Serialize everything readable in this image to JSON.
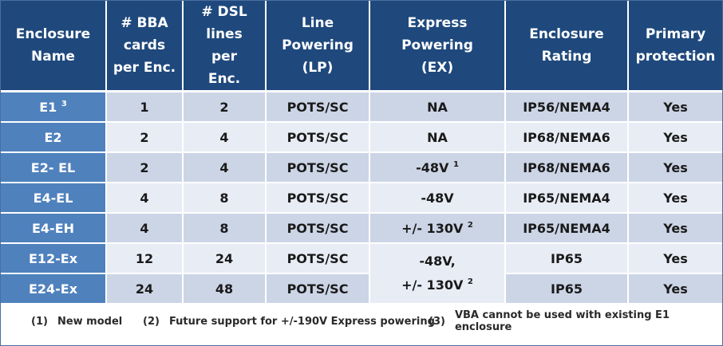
{
  "headers": [
    [
      "Enclosure",
      "Name"
    ],
    [
      "# BBA",
      "cards",
      "per Enc."
    ],
    [
      "# DSL lines",
      "per",
      "Enc."
    ],
    [
      "Line",
      "Powering",
      "(LP)"
    ],
    [
      "Express",
      "Powering",
      "(EX)"
    ],
    [
      "Enclosure",
      "Rating"
    ],
    [
      "Primary",
      "protection"
    ]
  ],
  "rows": [
    {
      "name": "E1",
      "name_sup": "3",
      "cards": "1",
      "lines": "2",
      "lp": "POTS/SC",
      "ex": "NA",
      "ex_sup": "",
      "rating": "IP56/NEMA4",
      "protection": "Yes"
    },
    {
      "name": "E2",
      "name_sup": "",
      "cards": "2",
      "lines": "4",
      "lp": "POTS/SC",
      "ex": "NA",
      "ex_sup": "",
      "rating": "IP68/NEMA6",
      "protection": "Yes"
    },
    {
      "name": "E2- EL",
      "name_sup": "",
      "cards": "2",
      "lines": "4",
      "lp": "POTS/SC",
      "ex": "-48V",
      "ex_sup": "1",
      "rating": "IP68/NEMA6",
      "protection": "Yes"
    },
    {
      "name": "E4-EL",
      "name_sup": "",
      "cards": "4",
      "lines": "8",
      "lp": "POTS/SC",
      "ex": "-48V",
      "ex_sup": "",
      "rating": "IP65/NEMA4",
      "protection": "Yes"
    },
    {
      "name": "E4-EH",
      "name_sup": "",
      "cards": "4",
      "lines": "8",
      "lp": "POTS/SC",
      "ex": "+/- 130V",
      "ex_sup": "2",
      "rating": "IP65/NEMA4",
      "protection": "Yes"
    },
    {
      "name": "E12-Ex",
      "name_sup": "",
      "cards": "12",
      "lines": "24",
      "lp": "POTS/SC",
      "rating": "IP65",
      "protection": "Yes"
    },
    {
      "name": "E24-Ex",
      "name_sup": "",
      "cards": "24",
      "lines": "48",
      "lp": "POTS/SC",
      "rating": "IP65",
      "protection": "Yes"
    }
  ],
  "merged_ex": {
    "line1": "-48V,",
    "line2": "+/- 130V",
    "line2_sup": "2"
  },
  "footnotes": [
    {
      "num": "(1)",
      "text": "New model"
    },
    {
      "num": "(2)",
      "text": "Future support for +/-190V Express powering"
    },
    {
      "num": "(3)",
      "text": "VBA cannot be used with existing E1 enclosure"
    }
  ]
}
